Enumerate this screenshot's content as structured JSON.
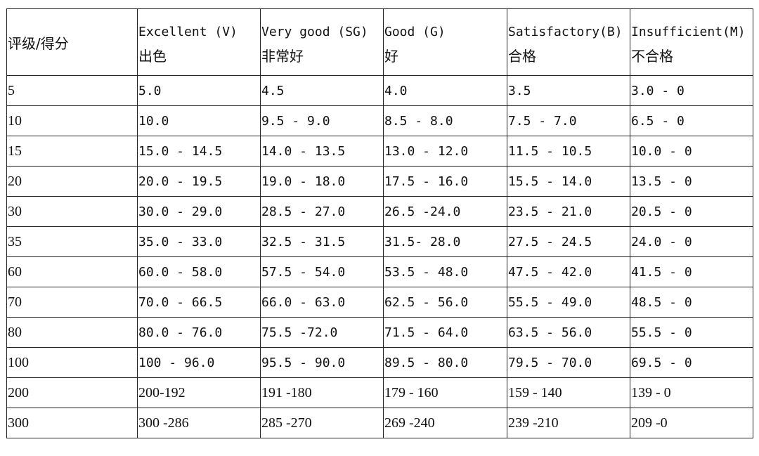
{
  "table": {
    "corner_label": "评级/得分",
    "columns": [
      {
        "en": "Excellent (V)",
        "cn": "出色"
      },
      {
        "en": "Very good (SG)",
        "cn": "非常好"
      },
      {
        "en": "Good (G)",
        "cn": "好"
      },
      {
        "en": "Satisfactory(B)",
        "cn": "合格"
      },
      {
        "en": "Insufficient(M)",
        "cn": "不合格"
      }
    ],
    "rows": [
      {
        "score": "5",
        "cells": [
          "5.0",
          "4.5",
          "4.0",
          "3.5",
          "3.0 - 0"
        ]
      },
      {
        "score": "10",
        "cells": [
          "10.0",
          "9.5 - 9.0",
          "8.5 - 8.0",
          "7.5 - 7.0",
          "6.5 - 0"
        ]
      },
      {
        "score": "15",
        "cells": [
          "15.0 - 14.5",
          "14.0 - 13.5",
          "13.0 - 12.0",
          "11.5 - 10.5",
          "10.0 - 0"
        ]
      },
      {
        "score": "20",
        "cells": [
          "20.0 - 19.5",
          "19.0 - 18.0",
          "17.5 - 16.0",
          "15.5 - 14.0",
          "13.5 - 0"
        ]
      },
      {
        "score": "30",
        "cells": [
          "30.0 - 29.0",
          "28.5 - 27.0",
          "26.5 -24.0",
          "23.5 - 21.0",
          "20.5 - 0"
        ]
      },
      {
        "score": "35",
        "cells": [
          "35.0 - 33.0",
          "32.5 - 31.5",
          "31.5- 28.0",
          "27.5 - 24.5",
          "24.0 - 0"
        ]
      },
      {
        "score": "60",
        "cells": [
          "60.0 - 58.0",
          "57.5 - 54.0",
          "53.5 - 48.0",
          "47.5 - 42.0",
          "41.5 - 0"
        ]
      },
      {
        "score": "70",
        "cells": [
          "70.0 - 66.5",
          "66.0 - 63.0",
          "62.5 - 56.0",
          "55.5 - 49.0",
          "48.5 - 0"
        ]
      },
      {
        "score": "80",
        "cells": [
          "80.0 - 76.0",
          "75.5 -72.0",
          "71.5 - 64.0",
          "63.5 - 56.0",
          "55.5 - 0"
        ]
      },
      {
        "score": "100",
        "cells": [
          "100 - 96.0",
          "95.5 - 90.0",
          "89.5 - 80.0",
          "79.5 - 70.0",
          "69.5 - 0"
        ]
      },
      {
        "score": "200",
        "cells": [
          "200-192",
          "191 -180",
          "179 - 160",
          "159 - 140",
          "139 - 0"
        ]
      },
      {
        "score": "300",
        "cells": [
          "300 -286",
          "285 -270",
          "269 -240",
          "239 -210",
          "209 -0"
        ]
      }
    ]
  }
}
